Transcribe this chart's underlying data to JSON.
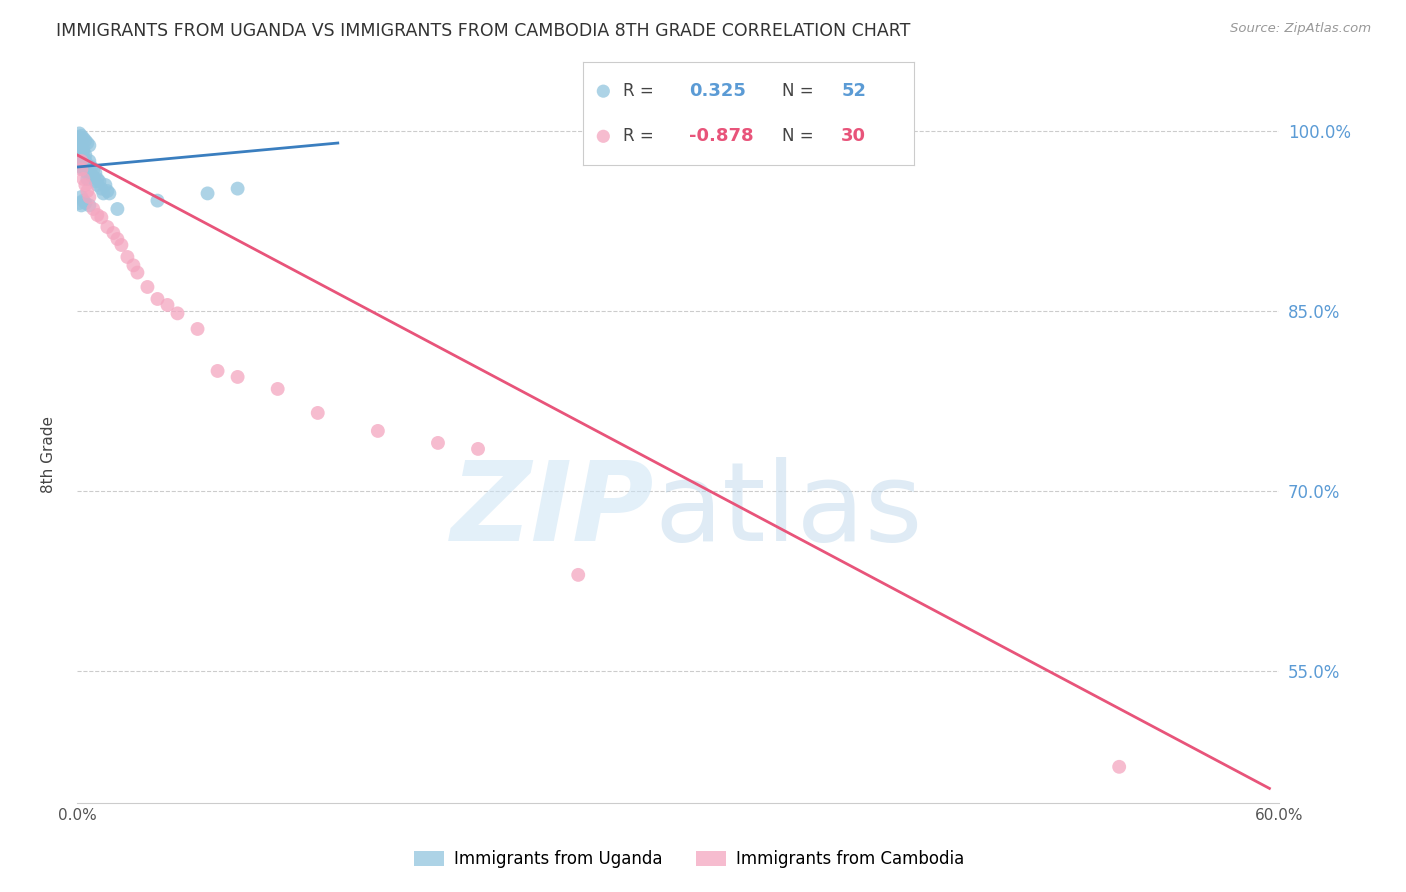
{
  "title": "IMMIGRANTS FROM UGANDA VS IMMIGRANTS FROM CAMBODIA 8TH GRADE CORRELATION CHART",
  "source": "Source: ZipAtlas.com",
  "ylabel": "8th Grade",
  "background_color": "#ffffff",
  "watermark_zip": "ZIP",
  "watermark_atlas": "atlas",
  "xlim": [
    0.0,
    0.6
  ],
  "ylim": [
    0.44,
    1.02
  ],
  "yticks": [
    1.0,
    0.85,
    0.7,
    0.55
  ],
  "ytick_labels": [
    "100.0%",
    "85.0%",
    "70.0%",
    "55.0%"
  ],
  "xticks": [
    0.0,
    0.1,
    0.2,
    0.3,
    0.4,
    0.5,
    0.6
  ],
  "xtick_labels": [
    "0.0%",
    "",
    "",
    "",
    "",
    "",
    "60.0%"
  ],
  "legend_R_uganda": "0.325",
  "legend_N_uganda": "52",
  "legend_R_cambodia": "-0.878",
  "legend_N_cambodia": "30",
  "uganda_color": "#92c5de",
  "cambodia_color": "#f4a6c0",
  "uganda_line_color": "#3a7ebf",
  "cambodia_line_color": "#e8547a",
  "uganda_scatter_x": [
    0.001,
    0.001,
    0.001,
    0.002,
    0.002,
    0.002,
    0.002,
    0.003,
    0.003,
    0.003,
    0.003,
    0.004,
    0.004,
    0.004,
    0.005,
    0.005,
    0.005,
    0.006,
    0.006,
    0.007,
    0.007,
    0.008,
    0.008,
    0.009,
    0.009,
    0.01,
    0.01,
    0.011,
    0.012,
    0.013,
    0.001,
    0.002,
    0.003,
    0.004,
    0.005,
    0.006,
    0.001,
    0.002,
    0.003,
    0.014,
    0.015,
    0.016,
    0.002,
    0.003,
    0.004,
    0.006,
    0.02,
    0.04,
    0.065,
    0.08,
    0.001,
    0.002
  ],
  "uganda_scatter_y": [
    0.99,
    0.985,
    0.995,
    0.988,
    0.992,
    0.98,
    0.975,
    0.985,
    0.978,
    0.982,
    0.97,
    0.975,
    0.968,
    0.98,
    0.972,
    0.965,
    0.96,
    0.975,
    0.968,
    0.97,
    0.963,
    0.968,
    0.962,
    0.965,
    0.958,
    0.96,
    0.955,
    0.958,
    0.952,
    0.948,
    0.998,
    0.996,
    0.994,
    0.992,
    0.99,
    0.988,
    0.972,
    0.97,
    0.968,
    0.955,
    0.95,
    0.948,
    0.945,
    0.942,
    0.94,
    0.938,
    0.935,
    0.942,
    0.948,
    0.952,
    0.94,
    0.938
  ],
  "cambodia_scatter_x": [
    0.002,
    0.003,
    0.004,
    0.005,
    0.006,
    0.008,
    0.01,
    0.012,
    0.015,
    0.018,
    0.02,
    0.022,
    0.025,
    0.028,
    0.03,
    0.035,
    0.04,
    0.045,
    0.05,
    0.06,
    0.07,
    0.08,
    0.1,
    0.12,
    0.15,
    0.18,
    0.2,
    0.25,
    0.52,
    0.002
  ],
  "cambodia_scatter_y": [
    0.968,
    0.96,
    0.955,
    0.95,
    0.945,
    0.935,
    0.93,
    0.928,
    0.92,
    0.915,
    0.91,
    0.905,
    0.895,
    0.888,
    0.882,
    0.87,
    0.86,
    0.855,
    0.848,
    0.835,
    0.8,
    0.795,
    0.785,
    0.765,
    0.75,
    0.74,
    0.735,
    0.63,
    0.47,
    0.975
  ],
  "uganda_trendline_x": [
    0.0,
    0.13
  ],
  "uganda_trendline_y": [
    0.97,
    0.99
  ],
  "cambodia_trendline_x": [
    0.0,
    0.595
  ],
  "cambodia_trendline_y": [
    0.98,
    0.452
  ]
}
